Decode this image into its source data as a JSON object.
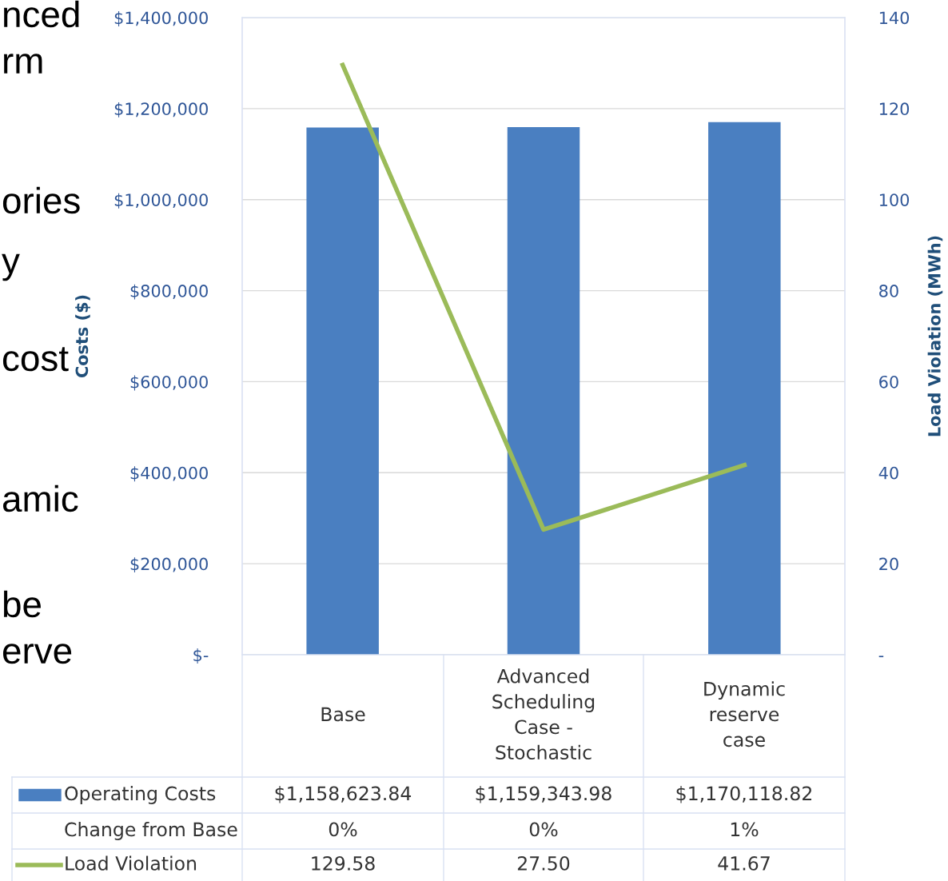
{
  "chart_data": {
    "type": "bar",
    "categories": [
      "Base",
      "Advanced\nScheduling\nCase -\nStochastic",
      "Dynamic\nreserve\ncase"
    ],
    "series": [
      {
        "name": "Operating Costs",
        "color": "#4a7fc1",
        "values": [
          1158623.84,
          1159343.98,
          1170118.82
        ],
        "value_labels": [
          "$1,158,623.84",
          "$1,159,343.98",
          "$1,170,118.82"
        ]
      },
      {
        "name": "Load Violation",
        "type": "line",
        "axis": "y2",
        "color": "#9bbb59",
        "values": [
          129.58,
          27.5,
          41.67
        ],
        "value_labels": [
          "129.58",
          "27.50",
          "41.67"
        ]
      }
    ],
    "ylabel": "Costs ($)",
    "y2label": "Load Violation (MWh)",
    "ylim": [
      0,
      1400000
    ],
    "yticks": [
      {
        "value": 0,
        "label": "$-"
      },
      {
        "value": 200000,
        "label": "$200,000"
      },
      {
        "value": 400000,
        "label": "$400,000"
      },
      {
        "value": 600000,
        "label": "$600,000"
      },
      {
        "value": 800000,
        "label": "$800,000"
      },
      {
        "value": 1000000,
        "label": "$1,000,000"
      },
      {
        "value": 1200000,
        "label": "$1,200,000"
      },
      {
        "value": 1400000,
        "label": "$1,400,000"
      }
    ],
    "y2lim": [
      0,
      140
    ],
    "y2ticks": [
      {
        "value": 0,
        "label": "-"
      },
      20,
      40,
      60,
      80,
      100,
      120,
      140
    ],
    "grid": "y",
    "legend": "bottom left",
    "annotations": [
      "Change from Base",
      "0%",
      "0%",
      "1%",
      "nced",
      "rm",
      "ories",
      "y",
      "cost",
      "amic",
      "be",
      "erve"
    ]
  }
}
